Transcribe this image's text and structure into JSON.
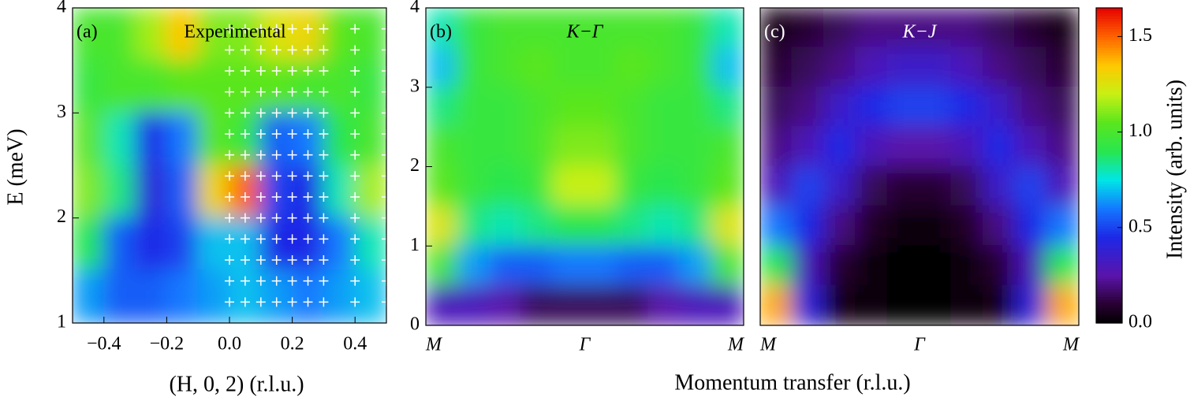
{
  "chart_data": [
    {
      "type": "heatmap",
      "title": "(a)",
      "subtitle": "Experimental",
      "xlabel": "(H, 0, 2) (r.l.u.)",
      "ylabel": "E (meV)",
      "xlim": [
        -0.5,
        0.5
      ],
      "ylim": [
        1,
        4
      ],
      "xticks": [
        {
          "value": -0.4,
          "label": "−0.4"
        },
        {
          "value": -0.2,
          "label": "−0.2"
        },
        {
          "value": 0,
          "label": "0.0"
        },
        0.2,
        0.4
      ],
      "yticks": [
        1,
        2,
        3,
        4
      ],
      "x": [
        -0.45,
        -0.35,
        -0.25,
        -0.15,
        -0.05,
        0.05,
        0.15,
        0.25,
        0.35,
        0.45
      ],
      "y": [
        3.75,
        3.25,
        2.75,
        2.25,
        1.75,
        1.25
      ],
      "z": [
        [
          1.0,
          1.0,
          1.15,
          1.35,
          1.1,
          1.1,
          1.25,
          1.3,
          1.05,
          1.0
        ],
        [
          0.95,
          1.0,
          1.0,
          1.05,
          1.05,
          1.05,
          1.05,
          1.0,
          1.0,
          0.95
        ],
        [
          1.05,
          0.8,
          0.45,
          0.6,
          1.05,
          0.95,
          0.55,
          0.6,
          0.9,
          1.0
        ],
        [
          1.1,
          0.85,
          0.4,
          0.55,
          1.3,
          1.5,
          0.5,
          0.45,
          0.8,
          1.15
        ],
        [
          0.9,
          0.55,
          0.45,
          0.5,
          0.7,
          0.7,
          0.45,
          0.45,
          0.6,
          0.8
        ],
        [
          0.65,
          0.55,
          0.55,
          0.6,
          0.65,
          0.7,
          0.65,
          0.6,
          0.65,
          0.7
        ]
      ],
      "measured_h": [
        0,
        0.05,
        0.1,
        0.15,
        0.2,
        0.25,
        0.3,
        0.4,
        0.5
      ],
      "measured_e": [
        1.2,
        1.4,
        1.6,
        1.8,
        2.0,
        2.2,
        2.4,
        2.6,
        2.8,
        3.0,
        3.2,
        3.4,
        3.6,
        3.8
      ]
    },
    {
      "type": "heatmap",
      "title": "(b)",
      "subtitle": "K−Γ",
      "ylim": [
        0,
        4
      ],
      "yticks": [
        0,
        1,
        2,
        3,
        4
      ],
      "x_tick_labels": [
        "M",
        "Γ",
        "M"
      ],
      "y": [
        3.75,
        3.25,
        2.75,
        2.25,
        1.75,
        1.25,
        0.75,
        0.25
      ],
      "z": [
        [
          0.8,
          0.95,
          1.0,
          1.0,
          1.0,
          1.0,
          1.0,
          1.0,
          0.95,
          0.8
        ],
        [
          0.7,
          0.95,
          1.0,
          1.05,
          1.0,
          1.0,
          1.05,
          1.0,
          0.95,
          0.7
        ],
        [
          0.85,
          0.95,
          0.95,
          1.0,
          1.05,
          1.05,
          1.0,
          0.95,
          0.95,
          0.85
        ],
        [
          1.0,
          0.95,
          0.95,
          1.0,
          1.1,
          1.1,
          1.0,
          0.95,
          0.95,
          1.0
        ],
        [
          1.05,
          0.95,
          0.9,
          0.95,
          1.2,
          1.2,
          0.95,
          0.9,
          0.95,
          1.05
        ],
        [
          1.25,
          0.85,
          0.8,
          0.85,
          0.9,
          0.9,
          0.85,
          0.8,
          0.85,
          1.25
        ],
        [
          1.0,
          0.65,
          0.55,
          0.55,
          0.6,
          0.6,
          0.55,
          0.55,
          0.65,
          1.0
        ],
        [
          0.3,
          0.3,
          0.25,
          0.15,
          0.15,
          0.15,
          0.15,
          0.25,
          0.3,
          0.3
        ]
      ]
    },
    {
      "type": "heatmap",
      "title": "(c)",
      "subtitle": "K−J",
      "ylim": [
        0,
        4
      ],
      "x_tick_labels": [
        "M",
        "Γ",
        "M"
      ],
      "y": [
        3.75,
        3.25,
        2.75,
        2.25,
        1.75,
        1.25,
        0.75,
        0.25
      ],
      "z": [
        [
          0.05,
          0.1,
          0.15,
          0.2,
          0.2,
          0.2,
          0.2,
          0.15,
          0.1,
          0.05
        ],
        [
          0.1,
          0.15,
          0.2,
          0.3,
          0.35,
          0.35,
          0.3,
          0.2,
          0.15,
          0.1
        ],
        [
          0.15,
          0.2,
          0.35,
          0.45,
          0.5,
          0.5,
          0.45,
          0.35,
          0.2,
          0.15
        ],
        [
          0.2,
          0.3,
          0.45,
          0.3,
          0.25,
          0.25,
          0.3,
          0.45,
          0.3,
          0.2
        ],
        [
          0.3,
          0.5,
          0.35,
          0.15,
          0.1,
          0.1,
          0.15,
          0.35,
          0.5,
          0.3
        ],
        [
          0.6,
          0.45,
          0.2,
          0.08,
          0.03,
          0.03,
          0.08,
          0.2,
          0.45,
          0.6
        ],
        [
          0.9,
          0.3,
          0.1,
          0.03,
          0,
          0,
          0.03,
          0.1,
          0.3,
          0.9
        ],
        [
          1.4,
          0.4,
          0.05,
          0.02,
          0,
          0,
          0.02,
          0.05,
          0.4,
          1.4
        ]
      ]
    }
  ],
  "shared_xlabel": "Momentum transfer (r.l.u.)",
  "colorbar": {
    "label": "Intensity (arb. units)",
    "zlim": [
      0,
      1.65
    ],
    "ticks": [
      {
        "value": 0,
        "label": "0.0"
      },
      0.5,
      {
        "value": 1,
        "label": "1.0"
      },
      1.5
    ]
  }
}
